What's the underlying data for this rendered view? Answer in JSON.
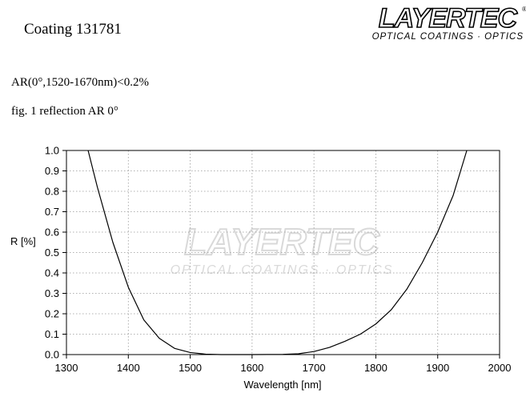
{
  "header": {
    "title": "Coating  131781",
    "logo": {
      "name": "LAYERTEC",
      "mark": "®",
      "tagline": "OPTICAL COATINGS · OPTICS"
    }
  },
  "spec": "AR(0°,1520-1670nm)<0.2%",
  "chart_data": {
    "type": "line",
    "title": "fig. 1 reflection AR  0°",
    "xlabel": "Wavelength [nm]",
    "ylabel": "R [%]",
    "x": [
      1335,
      1350,
      1375,
      1400,
      1425,
      1450,
      1475,
      1500,
      1525,
      1550,
      1600,
      1650,
      1675,
      1700,
      1725,
      1750,
      1775,
      1800,
      1825,
      1850,
      1875,
      1900,
      1925,
      1947
    ],
    "values": [
      1.0,
      0.82,
      0.55,
      0.33,
      0.17,
      0.08,
      0.03,
      0.01,
      0.002,
      0,
      0,
      0.001,
      0.004,
      0.015,
      0.035,
      0.065,
      0.1,
      0.15,
      0.22,
      0.32,
      0.45,
      0.6,
      0.78,
      1.0
    ],
    "color": "#000000",
    "xlim": [
      1300,
      2000
    ],
    "xticks": [
      1300,
      1400,
      1500,
      1600,
      1700,
      1800,
      1900,
      2000
    ],
    "ylim": [
      0,
      1
    ],
    "yticks": [
      {
        "value": 0,
        "label": "0.0"
      },
      0.1,
      0.2,
      0.3,
      0.4,
      0.5,
      0.6,
      0.7,
      0.8,
      0.9,
      {
        "value": 1,
        "label": "1.0"
      }
    ],
    "grid": true
  }
}
